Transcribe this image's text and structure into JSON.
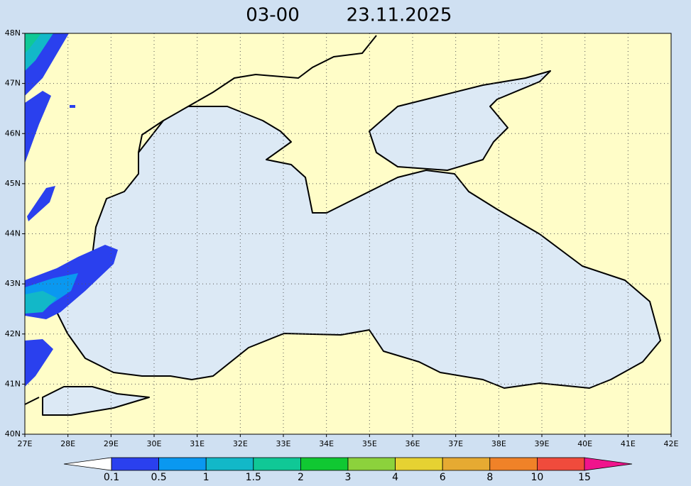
{
  "header": {
    "time": "03-00",
    "date": "23.11.2025"
  },
  "map": {
    "lon_labels": [
      "27E",
      "28E",
      "29E",
      "30E",
      "31E",
      "32E",
      "33E",
      "34E",
      "35E",
      "36E",
      "37E",
      "38E",
      "39E",
      "40E",
      "41E",
      "42E"
    ],
    "lat_labels": [
      "40N",
      "41N",
      "42N",
      "43N",
      "44N",
      "45N",
      "46N",
      "47N",
      "48N"
    ]
  },
  "colorbar": {
    "labels": [
      "0.1",
      "0.5",
      "1",
      "1.5",
      "2",
      "3",
      "4",
      "6",
      "8",
      "10",
      "15"
    ],
    "colors": [
      "#ffffff",
      "#2a40ee",
      "#0a98f0",
      "#12b8c8",
      "#10c896",
      "#10c832",
      "#8cd23c",
      "#e6d232",
      "#e6aa32",
      "#f08228",
      "#f04b3c",
      "#f0148c"
    ]
  }
}
